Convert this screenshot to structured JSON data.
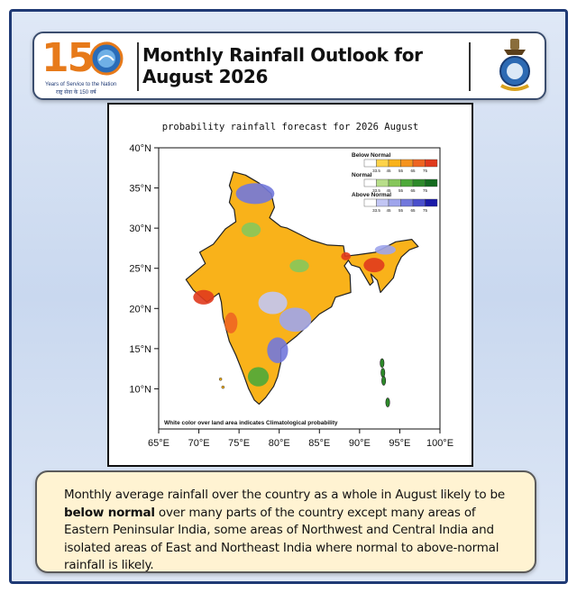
{
  "header": {
    "title": "Monthly Rainfall Outlook for August 2026",
    "anniversary_logo": {
      "number": "150",
      "tagline": "Years of Service to the Nation",
      "tagline_hindi": "राष्ट्र सेवा के 150 वर्ष"
    },
    "emblem_icon": "imd-emblem-icon"
  },
  "map": {
    "title": "probability rainfall forecast for 2026 August",
    "y_ticks": [
      "40°N",
      "35°N",
      "30°N",
      "25°N",
      "20°N",
      "15°N",
      "10°N"
    ],
    "x_ticks": [
      "65°E",
      "70°E",
      "75°E",
      "80°E",
      "85°E",
      "90°E",
      "95°E",
      "100°E"
    ],
    "lat_range": [
      5,
      40
    ],
    "lon_range": [
      65,
      100
    ],
    "note": "White color over land area indicates Climatological probability",
    "legend": [
      {
        "label": "Below Normal",
        "ticks": [
          "33.5",
          "45",
          "55",
          "65",
          "75"
        ],
        "colors": [
          "#ffffff",
          "#fdd34a",
          "#f9b21a",
          "#f5931e",
          "#ee6522",
          "#e03a1d"
        ]
      },
      {
        "label": "Normal",
        "ticks": [
          "33.5",
          "45",
          "55",
          "65",
          "75"
        ],
        "colors": [
          "#ffffff",
          "#b8de8a",
          "#86c65b",
          "#4ea93a",
          "#2d8a2a",
          "#146b1e"
        ]
      },
      {
        "label": "Above Normal",
        "ticks": [
          "33.5",
          "45",
          "55",
          "65",
          "75"
        ],
        "colors": [
          "#ffffff",
          "#c2c6f4",
          "#9fa5ec",
          "#7278dc",
          "#4a4fcc",
          "#1a1aa8"
        ]
      }
    ]
  },
  "summary": {
    "part1": "Monthly average rainfall over the country as a whole in August likely to be ",
    "bold": "below normal",
    "part2": " over many parts of the country except many areas of Eastern Peninsular India, some areas of Northwest and Central India and isolated areas  of East and Northeast India where normal to above-normal rainfall is likely."
  }
}
